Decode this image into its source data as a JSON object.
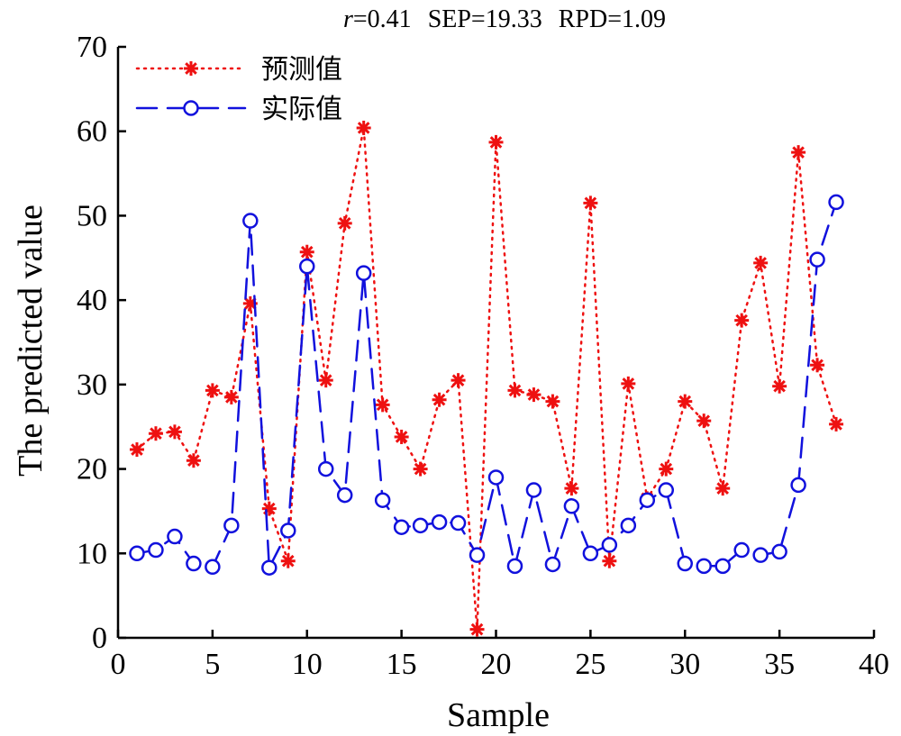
{
  "chart_data": {
    "type": "line",
    "stats": {
      "r_symbol": "r",
      "r_value": "=0.41",
      "sep": "SEP=19.33",
      "rpd": "RPD=1.09"
    },
    "xlabel": "Sample",
    "ylabel": "The predicted value",
    "xlim": [
      0,
      40
    ],
    "ylim": [
      0,
      70
    ],
    "xticks": [
      0,
      5,
      10,
      15,
      20,
      25,
      30,
      35,
      40
    ],
    "yticks": [
      0,
      10,
      20,
      30,
      40,
      50,
      60,
      70
    ],
    "grid": false,
    "legend_position": "top-left",
    "x": [
      1,
      2,
      3,
      4,
      5,
      6,
      7,
      8,
      9,
      10,
      11,
      12,
      13,
      14,
      15,
      16,
      17,
      18,
      19,
      20,
      21,
      22,
      23,
      24,
      25,
      26,
      27,
      28,
      29,
      30,
      31,
      32,
      33,
      34,
      35,
      36,
      37,
      38
    ],
    "series": [
      {
        "name": "预测值",
        "color": "#ee1111",
        "line_style": "dotted",
        "marker": "asterisk",
        "values": [
          22.3,
          24.2,
          24.4,
          21.0,
          29.3,
          28.5,
          39.6,
          15.3,
          9.1,
          45.7,
          30.5,
          49.1,
          60.4,
          27.6,
          23.8,
          20.0,
          28.2,
          30.5,
          1.0,
          58.7,
          29.3,
          28.8,
          28.0,
          17.7,
          51.5,
          9.1,
          30.1,
          16.5,
          20.0,
          28.0,
          25.7,
          17.7,
          37.6,
          44.4,
          29.8,
          57.5,
          32.3,
          25.3
        ]
      },
      {
        "name": "实际值",
        "color": "#1111dd",
        "line_style": "dashed",
        "marker": "circle",
        "values": [
          10.0,
          10.4,
          12.0,
          8.8,
          8.4,
          13.3,
          49.4,
          8.3,
          12.7,
          44.0,
          20.0,
          16.9,
          43.2,
          16.3,
          13.1,
          13.3,
          13.7,
          13.6,
          9.8,
          19.0,
          8.5,
          17.5,
          8.7,
          15.6,
          10.0,
          11.0,
          13.3,
          16.3,
          17.5,
          8.8,
          8.5,
          8.5,
          10.4,
          9.8,
          10.2,
          18.1,
          44.8,
          51.6
        ]
      }
    ]
  }
}
